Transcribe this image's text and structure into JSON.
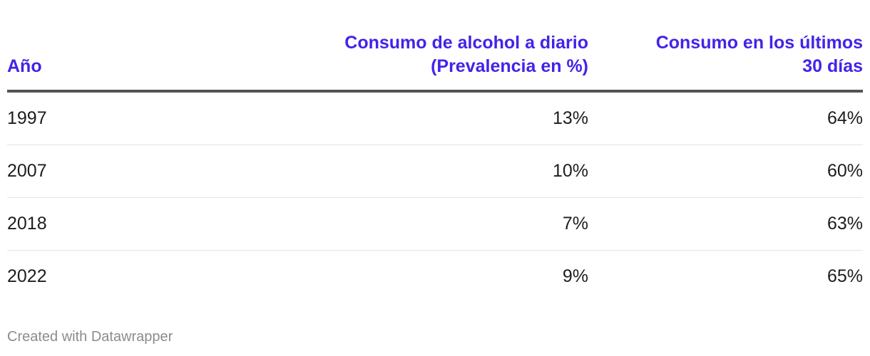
{
  "chart_data": {
    "type": "table",
    "columns": [
      {
        "key": "year",
        "label_lines": [
          "Año"
        ]
      },
      {
        "key": "daily_alcohol",
        "label_lines": [
          "Consumo de alcohol a diario",
          "(Prevalencia en %)"
        ]
      },
      {
        "key": "last_30_days",
        "label_lines": [
          "Consumo en los últimos",
          "30 días"
        ]
      }
    ],
    "rows": [
      {
        "year": "1997",
        "daily_alcohol": "13%",
        "last_30_days": "64%"
      },
      {
        "year": "2007",
        "daily_alcohol": "10%",
        "last_30_days": "60%"
      },
      {
        "year": "2018",
        "daily_alcohol": "7%",
        "last_30_days": "63%"
      },
      {
        "year": "2022",
        "daily_alcohol": "9%",
        "last_30_days": "65%"
      }
    ]
  },
  "colors": {
    "header_text": "#4124e8",
    "header_rule": "#545454",
    "row_divider": "#e4e4e4",
    "footer_text": "#8c8c8c"
  },
  "footer": {
    "credit": "Created with Datawrapper"
  }
}
